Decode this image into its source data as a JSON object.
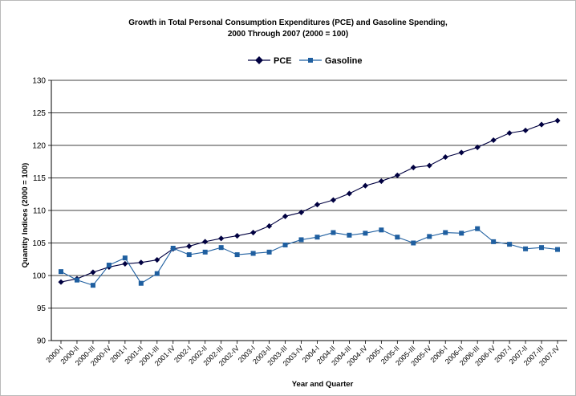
{
  "chart_data": {
    "type": "line",
    "title_line1": "Growth in Total Personal Consumption Expenditures (PCE) and Gasoline Spending,",
    "title_line2": "2000 Through 2007 (2000 = 100)",
    "xlabel": "Year and Quarter",
    "ylabel": "Quantity Indices (2000 = 100)",
    "ylim": [
      90,
      130
    ],
    "yticks": [
      90,
      95,
      100,
      105,
      110,
      115,
      120,
      125,
      130
    ],
    "grid": "horizontal",
    "legend_position": "top-center",
    "categories": [
      "2000-I",
      "2000-II",
      "2000-III",
      "2000-IV",
      "2001-I",
      "2001-II",
      "2001-III",
      "2001-IV",
      "2002-I",
      "2002-II",
      "2002-III",
      "2002-IV",
      "2003-I",
      "2003-II",
      "2003-III",
      "2003-IV",
      "2004-I",
      "2004-II",
      "2004-III",
      "2004-IV",
      "2005-I",
      "2005-II",
      "2005-III",
      "2005-IV",
      "2006-I",
      "2006-II",
      "2006-III",
      "2006-IV",
      "2007-I",
      "2007-II",
      "2007-III",
      "2007-IV"
    ],
    "series": [
      {
        "name": "PCE",
        "color": "#000040",
        "marker": "diamond",
        "values": [
          99.0,
          99.5,
          100.5,
          101.3,
          101.8,
          102.0,
          102.4,
          104.1,
          104.5,
          105.2,
          105.7,
          106.1,
          106.6,
          107.6,
          109.1,
          109.7,
          110.9,
          111.6,
          112.6,
          113.8,
          114.5,
          115.4,
          116.6,
          116.9,
          118.2,
          118.9,
          119.7,
          120.8,
          121.9,
          122.3,
          123.2,
          123.8
        ]
      },
      {
        "name": "Gasoline",
        "color": "#1f5fa0",
        "marker": "square",
        "values": [
          100.6,
          99.3,
          98.5,
          101.6,
          102.7,
          98.8,
          100.3,
          104.2,
          103.2,
          103.6,
          104.3,
          103.2,
          103.4,
          103.6,
          104.7,
          105.5,
          105.9,
          106.6,
          106.2,
          106.5,
          107.0,
          105.9,
          105.0,
          106.0,
          106.6,
          106.5,
          107.2,
          105.2,
          104.8,
          104.1,
          104.3,
          104.0
        ]
      }
    ]
  }
}
